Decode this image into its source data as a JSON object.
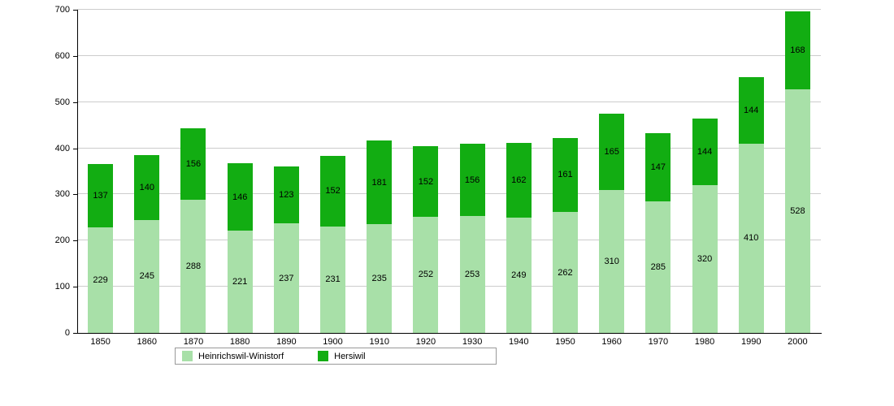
{
  "chart_data": {
    "type": "bar",
    "stacked": true,
    "title": "",
    "xlabel": "",
    "ylabel": "",
    "ylim": [
      0,
      700
    ],
    "ytick_step": 100,
    "grid": true,
    "legend_position": "bottom",
    "categories": [
      "1850",
      "1860",
      "1870",
      "1880",
      "1890",
      "1900",
      "1910",
      "1920",
      "1930",
      "1940",
      "1950",
      "1960",
      "1970",
      "1980",
      "1990",
      "2000"
    ],
    "series": [
      {
        "name": "Heinrichswil-Winistorf",
        "color": "#a8e0a8",
        "values": [
          229,
          245,
          288,
          221,
          237,
          231,
          235,
          252,
          253,
          249,
          262,
          310,
          285,
          320,
          410,
          528
        ]
      },
      {
        "name": "Hersiwil",
        "color": "#12ad12",
        "values": [
          137,
          140,
          156,
          146,
          123,
          152,
          181,
          152,
          156,
          162,
          161,
          165,
          147,
          144,
          144,
          168
        ]
      }
    ]
  },
  "legend": {
    "items": [
      {
        "label": "Heinrichswil-Winistorf",
        "color": "#a8e0a8"
      },
      {
        "label": "Hersiwil",
        "color": "#12ad12"
      }
    ]
  }
}
